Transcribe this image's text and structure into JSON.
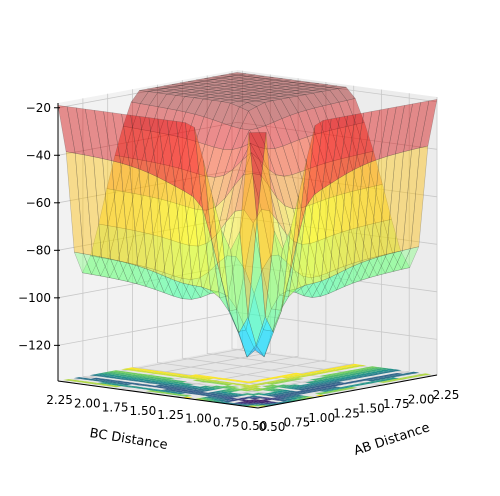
{
  "chart_data": {
    "type": "surface",
    "projection": "3d",
    "title": "",
    "xlabel": "AB Distance",
    "ylabel": "BC Distance",
    "zlabel": "",
    "x_ticks": [
      "0.50",
      "0.75",
      "1.00",
      "1.25",
      "1.50",
      "1.75",
      "2.00",
      "2.25"
    ],
    "y_ticks": [
      "2.25",
      "2.00",
      "1.75",
      "1.50",
      "1.25",
      "1.00",
      "0.75",
      "0.50"
    ],
    "z_ticks": [
      "−20",
      "−40",
      "−60",
      "−80",
      "−100",
      "−120"
    ],
    "z_values": [
      -20,
      -40,
      -60,
      -80,
      -100,
      -120
    ],
    "x_range": [
      0.5,
      2.3
    ],
    "y_range": [
      0.5,
      2.3
    ],
    "z_range": [
      -135,
      -18
    ],
    "grid": true,
    "surface_colormap": "jet",
    "contour_colormap": "viridis",
    "contour_levels": [
      -125,
      -115,
      -105,
      -95,
      -85,
      -75,
      -65,
      -55,
      -45,
      -35,
      -25
    ],
    "surface_notes": "LEPS-like potential energy surface: high repulsive ridge near small AB and small BC, two valleys near minimum about -127 at large separations"
  }
}
